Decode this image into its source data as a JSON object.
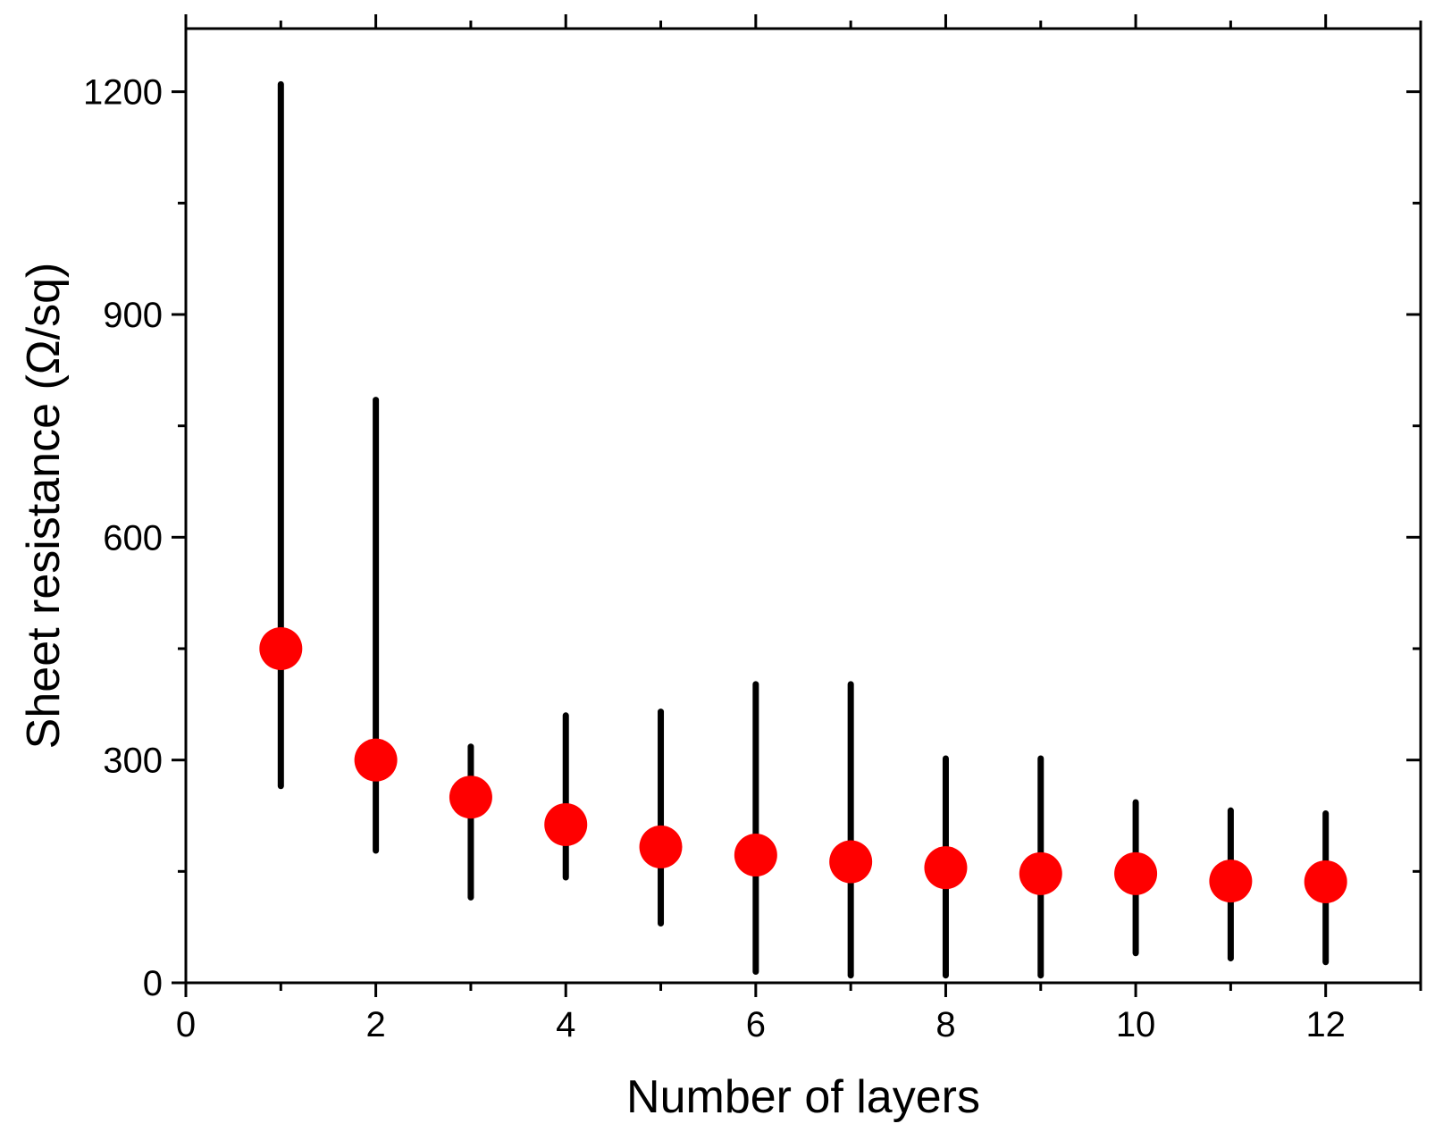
{
  "chart_data": {
    "type": "scatter",
    "title": "",
    "xlabel": "Number  of layers",
    "ylabel": "Sheet  resistance (Ω/sq)",
    "xlim": [
      0,
      13
    ],
    "ylim": [
      0,
      1285
    ],
    "x_ticks": [
      0,
      2,
      4,
      6,
      8,
      10,
      12
    ],
    "x_tick_labels": [
      "0",
      "2",
      "4",
      "6",
      "8",
      "10",
      "12"
    ],
    "y_ticks": [
      0,
      300,
      600,
      900,
      1200
    ],
    "y_tick_labels": [
      "0",
      "300",
      "600",
      "900",
      "1200"
    ],
    "grid": false,
    "legend": "none",
    "series": [
      {
        "marker": "filled-circle",
        "color": "#ff0000",
        "error_bar_color": "#000000",
        "points": [
          {
            "x": 1,
            "y": 450,
            "y_low": 265,
            "y_high": 1210
          },
          {
            "x": 2,
            "y": 300,
            "y_low": 178,
            "y_high": 785
          },
          {
            "x": 3,
            "y": 250,
            "y_low": 115,
            "y_high": 318
          },
          {
            "x": 4,
            "y": 213,
            "y_low": 142,
            "y_high": 360
          },
          {
            "x": 5,
            "y": 183,
            "y_low": 80,
            "y_high": 365
          },
          {
            "x": 6,
            "y": 172,
            "y_low": 15,
            "y_high": 402
          },
          {
            "x": 7,
            "y": 163,
            "y_low": 10,
            "y_high": 402
          },
          {
            "x": 8,
            "y": 155,
            "y_low": 10,
            "y_high": 302
          },
          {
            "x": 9,
            "y": 147,
            "y_low": 10,
            "y_high": 302
          },
          {
            "x": 10,
            "y": 147,
            "y_low": 40,
            "y_high": 243
          },
          {
            "x": 11,
            "y": 137,
            "y_low": 33,
            "y_high": 232
          },
          {
            "x": 12,
            "y": 136,
            "y_low": 28,
            "y_high": 228
          }
        ]
      }
    ]
  }
}
